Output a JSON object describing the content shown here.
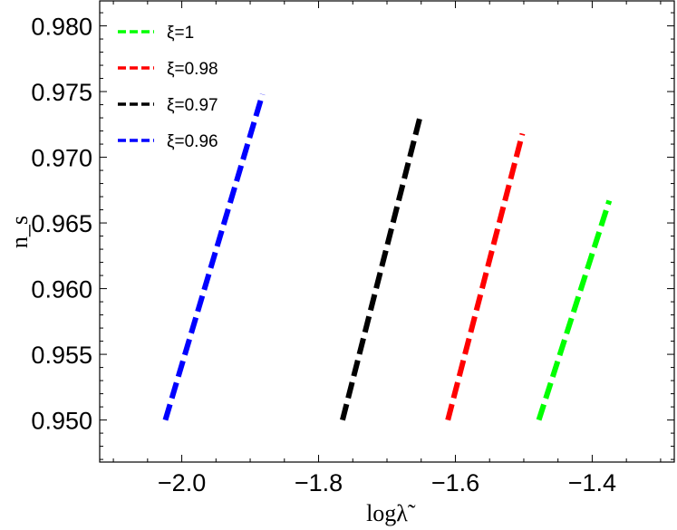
{
  "chart_data": {
    "type": "line",
    "title": "",
    "xlabel": "logλ̃",
    "ylabel": "n_s",
    "xlim": [
      -2.12,
      -1.28
    ],
    "ylim": [
      0.9468,
      0.9819
    ],
    "x_ticks": [
      -2.0,
      -1.8,
      -1.6,
      -1.4
    ],
    "x_tick_labels": [
      "−2.0",
      "−1.8",
      "−1.6",
      "−1.4"
    ],
    "y_ticks": [
      0.95,
      0.955,
      0.96,
      0.965,
      0.97,
      0.975,
      0.98
    ],
    "y_tick_labels": [
      "0.950",
      "0.955",
      "0.960",
      "0.965",
      "0.970",
      "0.975",
      "0.980"
    ],
    "grid": false,
    "legend_position": "top-left",
    "series": [
      {
        "name": "ξ=1",
        "color": "#00ff00",
        "line_style": "dashed",
        "x": [
          -1.478,
          -1.375
        ],
        "y": [
          0.95,
          0.9667
        ]
      },
      {
        "name": "ξ=0.98",
        "color": "#ff0000",
        "line_style": "dashed",
        "x": [
          -1.611,
          -1.502
        ],
        "y": [
          0.95,
          0.9718
        ]
      },
      {
        "name": "ξ=0.97",
        "color": "#000000",
        "line_style": "dashed",
        "x": [
          -1.765,
          -1.651
        ],
        "y": [
          0.95,
          0.9732
        ]
      },
      {
        "name": "ξ=0.96",
        "color": "#0000ff",
        "line_style": "dashed",
        "x": [
          -2.024,
          -1.882
        ],
        "y": [
          0.95,
          0.9748
        ]
      }
    ]
  }
}
